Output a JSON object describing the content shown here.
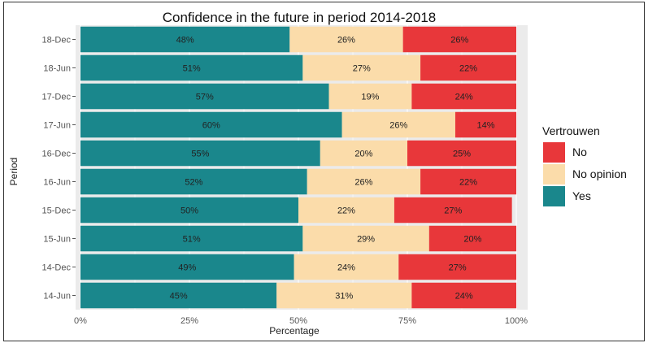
{
  "chart_data": {
    "type": "bar",
    "orientation": "horizontal",
    "stacked": true,
    "title": "Confidence in the future in period 2014-2018",
    "xlabel": "Percentage",
    "ylabel": "Period",
    "xlim": [
      0,
      100
    ],
    "x_ticks": [
      "0%",
      "25%",
      "50%",
      "75%",
      "100%"
    ],
    "categories": [
      "18-Dec",
      "18-Jun",
      "17-Dec",
      "17-Jun",
      "16-Dec",
      "16-Jun",
      "15-Dec",
      "15-Jun",
      "14-Dec",
      "14-Jun"
    ],
    "series": [
      {
        "name": "Yes",
        "color": "#1a878c",
        "values": [
          48,
          51,
          57,
          60,
          55,
          52,
          50,
          51,
          49,
          45
        ]
      },
      {
        "name": "No opinion",
        "color": "#fbdcaa",
        "values": [
          26,
          27,
          19,
          26,
          20,
          26,
          22,
          29,
          24,
          31
        ]
      },
      {
        "name": "No",
        "color": "#e8373a",
        "values": [
          26,
          22,
          24,
          14,
          25,
          22,
          27,
          20,
          27,
          24
        ]
      }
    ],
    "legend": {
      "title": "Vertrouwen",
      "placement": "right",
      "order": [
        "No",
        "No opinion",
        "Yes"
      ]
    },
    "grid": true,
    "panel_background": "#ebebeb"
  }
}
